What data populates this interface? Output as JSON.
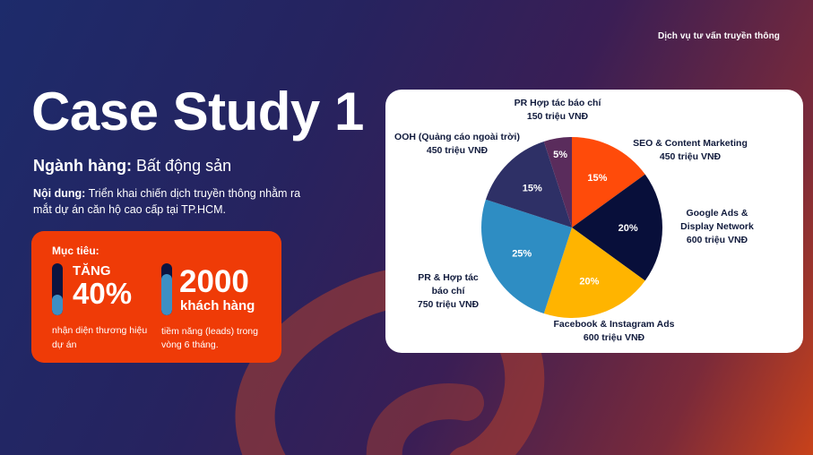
{
  "header": {
    "tag": "Dịch vụ tư vấn truyền thông"
  },
  "title": "Case Study 1",
  "industry": {
    "label": "Ngành hàng:",
    "value": "Bất động sản"
  },
  "content": {
    "label": "Nội dung:",
    "text": "Triển khai chiến dịch truyền thông nhằm ra mắt dự án căn hộ cao cấp tại TP.HCM."
  },
  "goals": {
    "label": "Mục tiêu:",
    "metric1": {
      "prefix": "TĂNG",
      "value": "40%",
      "desc": "nhận diện thương hiệu dự án",
      "level": 0.4
    },
    "metric2": {
      "value": "2000",
      "unit": "khách hàng",
      "desc": "tiềm năng (leads) trong vòng 6 tháng.",
      "level": 0.8
    }
  },
  "chart_data": {
    "type": "pie",
    "slices": [
      {
        "label_lines": [
          "SEO & Content Marketing",
          "450 triệu VNĐ"
        ],
        "value": 15,
        "pct_label": "15%",
        "color": "#ff4b0a"
      },
      {
        "label_lines": [
          "Google Ads &",
          "Display Network",
          "600 triệu VNĐ"
        ],
        "value": 20,
        "pct_label": "20%",
        "color": "#080f3a"
      },
      {
        "label_lines": [
          "Facebook & Instagram Ads",
          "600 triệu VNĐ"
        ],
        "value": 20,
        "pct_label": "20%",
        "color": "#ffb400"
      },
      {
        "label_lines": [
          "PR & Hợp tác",
          "báo chí",
          "750 triệu VNĐ"
        ],
        "value": 25,
        "pct_label": "25%",
        "color": "#2e8dc3"
      },
      {
        "label_lines": [
          "OOH (Quảng cáo ngoài trời)",
          "450 triệu VNĐ"
        ],
        "value": 15,
        "pct_label": "15%",
        "color": "#2e3066"
      },
      {
        "label_lines": [
          "PR Hợp tác báo chí",
          "150 triệu VNĐ"
        ],
        "value": 5,
        "pct_label": "5%",
        "color": "#5a2c5c"
      }
    ]
  }
}
